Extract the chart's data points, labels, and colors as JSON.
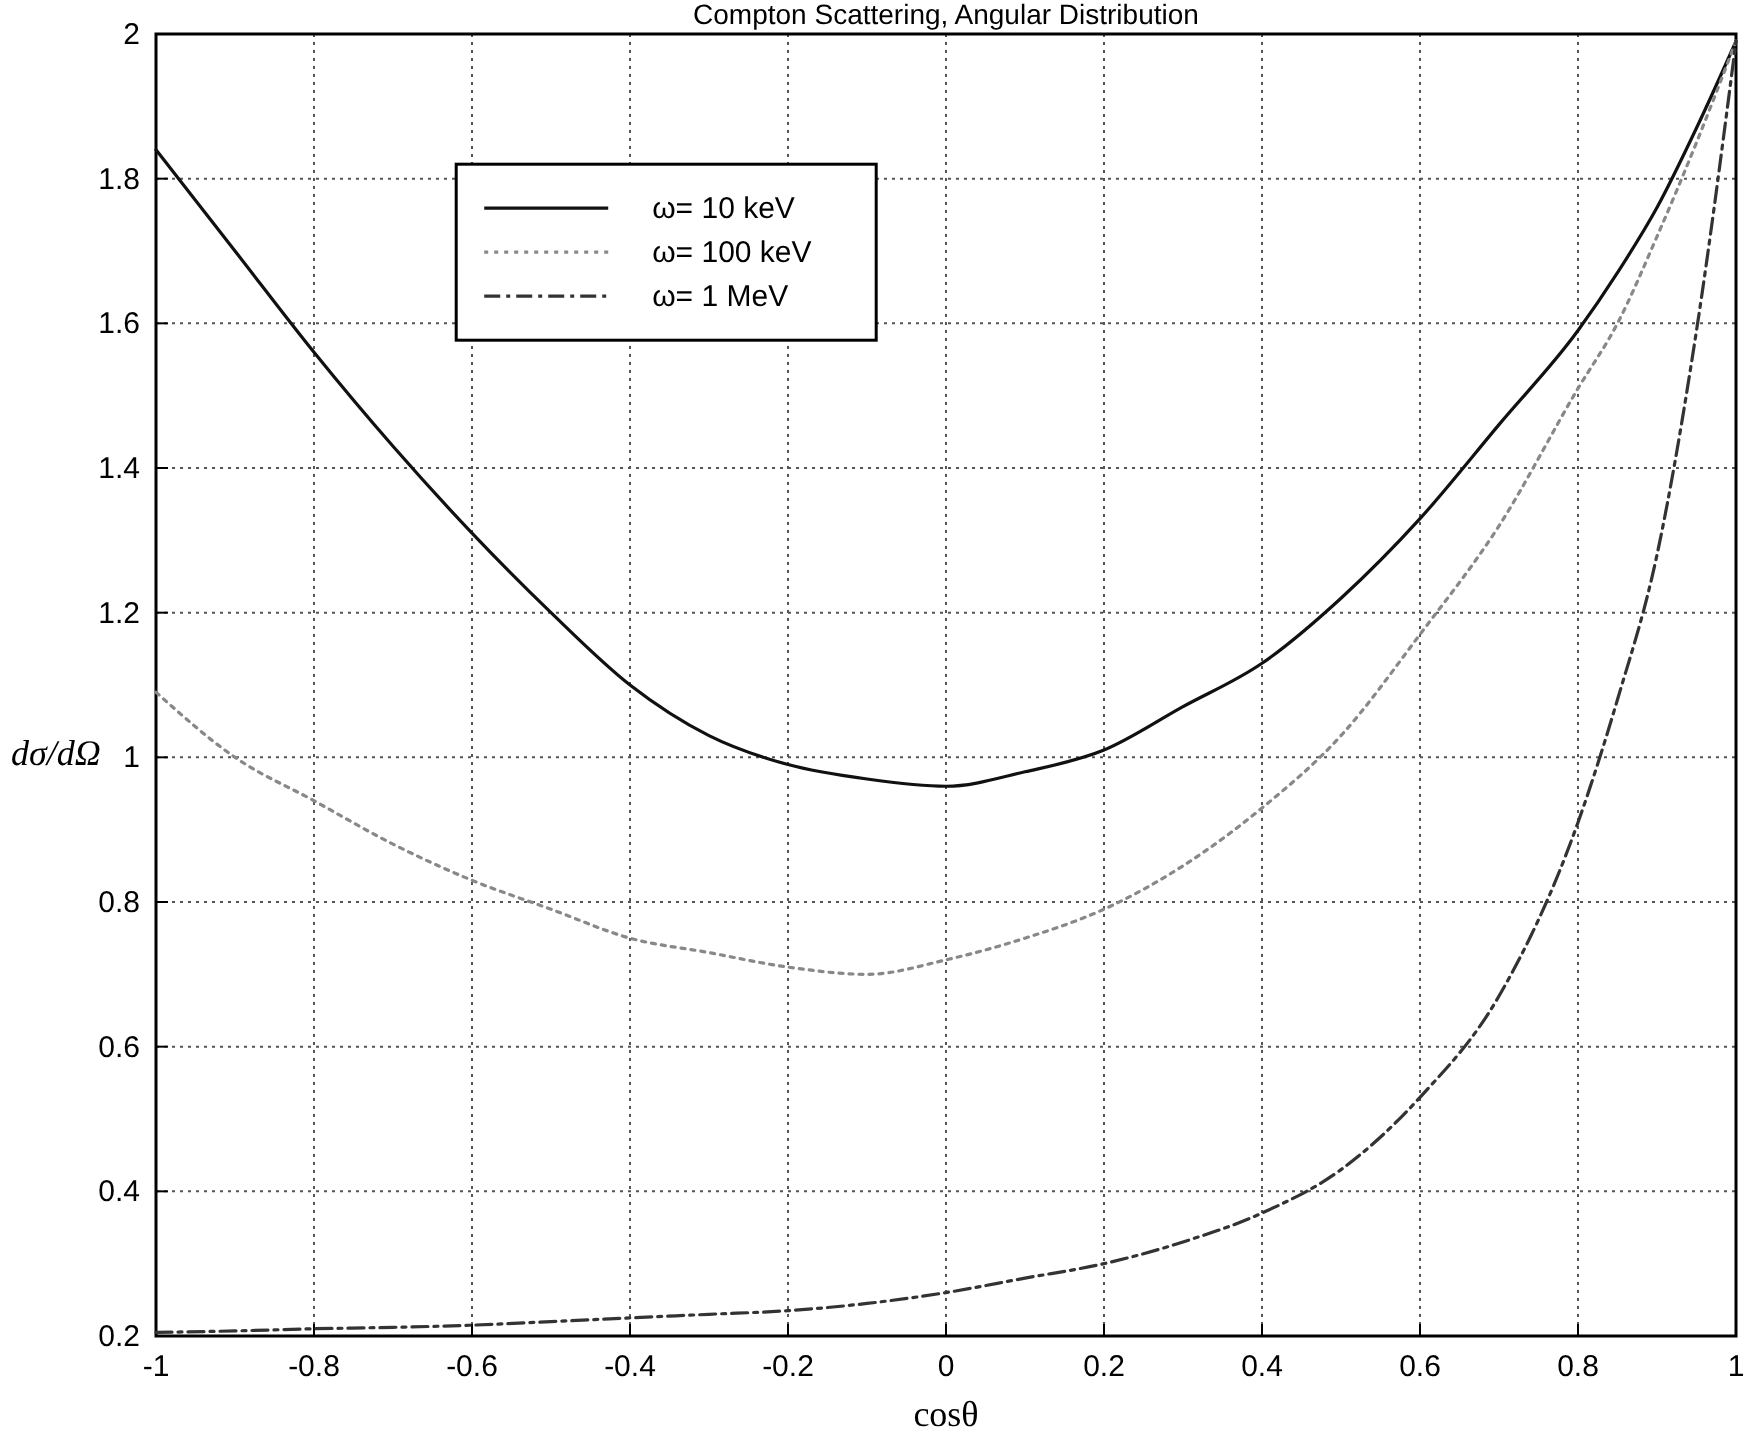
{
  "chart_data": {
    "type": "line",
    "title": "Compton Scattering, Angular Distribution",
    "xlabel": "cosθ",
    "ylabel": "dσ/dΩ",
    "x": [
      -1,
      -0.9,
      -0.8,
      -0.7,
      -0.6,
      -0.5,
      -0.4,
      -0.3,
      -0.2,
      -0.1,
      0,
      0.1,
      0.2,
      0.3,
      0.4,
      0.5,
      0.6,
      0.7,
      0.8,
      0.85,
      0.9,
      0.95,
      1
    ],
    "series": [
      {
        "name": "ω= 10 keV",
        "color": "#111111",
        "line_style": "solid",
        "values": [
          1.84,
          1.7,
          1.56,
          1.43,
          1.31,
          1.2,
          1.1,
          1.03,
          0.99,
          0.97,
          0.96,
          0.98,
          1.01,
          1.07,
          1.13,
          1.22,
          1.33,
          1.46,
          1.59,
          1.67,
          1.76,
          1.87,
          1.99
        ]
      },
      {
        "name": "ω= 100 keV",
        "color": "#888888",
        "line_style": "dotted",
        "values": [
          1.09,
          1.0,
          0.94,
          0.88,
          0.83,
          0.79,
          0.75,
          0.73,
          0.71,
          0.7,
          0.72,
          0.75,
          0.79,
          0.85,
          0.93,
          1.03,
          1.17,
          1.32,
          1.51,
          1.6,
          1.72,
          1.85,
          1.99
        ]
      },
      {
        "name": "ω= 1 MeV",
        "color": "#333333",
        "line_style": "dashed",
        "values": [
          0.205,
          0.207,
          0.21,
          0.212,
          0.215,
          0.22,
          0.225,
          0.23,
          0.235,
          0.245,
          0.26,
          0.28,
          0.3,
          0.33,
          0.37,
          0.43,
          0.53,
          0.67,
          0.91,
          1.08,
          1.28,
          1.59,
          1.99
        ]
      }
    ],
    "xlim": [
      -1,
      1
    ],
    "xticks": [
      -1,
      -0.8,
      -0.6,
      -0.4,
      -0.2,
      0,
      0.2,
      0.4,
      0.6,
      0.8,
      1
    ],
    "ylim": [
      0.2,
      2
    ],
    "yticks": [
      0.2,
      0.4,
      0.6,
      0.8,
      1,
      1.2,
      1.4,
      1.6,
      1.8,
      2
    ],
    "grid": true,
    "legend": "top",
    "marker": "none"
  }
}
